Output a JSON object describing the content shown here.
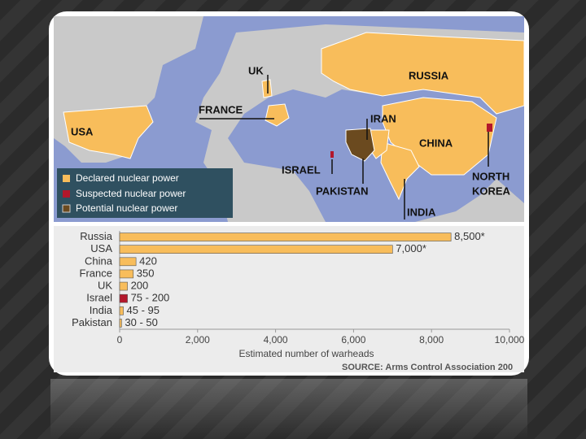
{
  "map": {
    "labels": [
      "UK",
      "RUSSIA",
      "FRANCE",
      "USA",
      "IRAN",
      "CHINA",
      "ISRAEL",
      "PAKISTAN",
      {
        "lines": [
          "NORTH",
          "KOREA"
        ]
      },
      "INDIA"
    ],
    "legend": [
      "Declared nuclear power",
      "Suspected nuclear power",
      "Potential nuclear power"
    ]
  },
  "chart_data": {
    "type": "hbar",
    "categories": [
      "Russia",
      "USA",
      "China",
      "France",
      "UK",
      "Israel",
      "India",
      "Pakistan"
    ],
    "values": [
      8500,
      7000,
      420,
      350,
      200,
      200,
      95,
      50
    ],
    "value_labels": [
      "8,500*",
      "7,000*",
      "420",
      "350",
      "200",
      "75 - 200",
      "45 - 95",
      "30 - 50"
    ],
    "colors": [
      "#f8bd5b",
      "#f8bd5b",
      "#f8bd5b",
      "#f8bd5b",
      "#f8bd5b",
      "#b3172b",
      "#f8bd5b",
      "#f8bd5b"
    ],
    "xlim": [
      0,
      10000
    ],
    "xticks": [
      0,
      {
        "value": 2000,
        "label": "2,000"
      },
      {
        "value": 4000,
        "label": "4,000"
      },
      {
        "value": 6000,
        "label": "6,000"
      },
      {
        "value": 8000,
        "label": "8,000"
      },
      {
        "value": 10000,
        "label": "10,000"
      }
    ],
    "xlabel": "Estimated number of warheads",
    "source": "SOURCE: Arms Control Association 200"
  }
}
